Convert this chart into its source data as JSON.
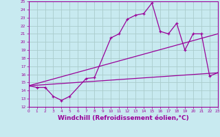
{
  "bg_color": "#c8eaf0",
  "line_color": "#990099",
  "grid_color": "#aacccc",
  "xlabel": "Windchill (Refroidissement éolien,°C)",
  "xlabel_fontsize": 6.5,
  "xtick_labels": [
    "0",
    "1",
    "2",
    "3",
    "4",
    "5",
    "6",
    "7",
    "8",
    "9",
    "10",
    "11",
    "12",
    "13",
    "14",
    "15",
    "16",
    "17",
    "18",
    "19",
    "20",
    "21",
    "22",
    "23"
  ],
  "ytick_labels": [
    "12",
    "13",
    "14",
    "15",
    "16",
    "17",
    "18",
    "19",
    "20",
    "21",
    "22",
    "23",
    "24",
    "25"
  ],
  "ylim": [
    12,
    25
  ],
  "xlim": [
    0,
    23
  ],
  "line1_x": [
    0,
    1,
    2,
    3,
    4,
    5,
    7,
    8,
    10,
    11,
    12,
    13,
    14,
    15,
    16,
    17,
    18,
    19,
    20,
    21,
    22,
    23
  ],
  "line1_y": [
    14.6,
    14.4,
    14.4,
    13.3,
    12.8,
    13.3,
    15.5,
    15.6,
    20.5,
    21.0,
    22.8,
    23.3,
    23.5,
    24.8,
    21.3,
    21.0,
    22.3,
    19.0,
    21.0,
    21.0,
    15.8,
    16.2
  ],
  "line2_x": [
    0,
    23
  ],
  "line2_y": [
    14.6,
    16.2
  ],
  "line3_x": [
    0,
    23
  ],
  "line3_y": [
    14.6,
    21.0
  ]
}
